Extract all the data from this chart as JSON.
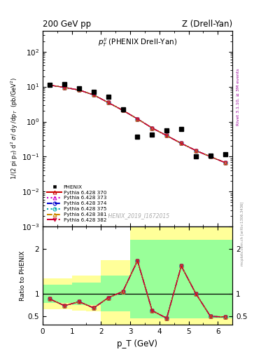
{
  "title_left": "200 GeV pp",
  "title_right": "Z (Drell-Yan)",
  "annotation": "$p_T^{ll}$ (PHENIX Drell-Yan)",
  "watermark": "PHENIX_2019_I1672015",
  "right_label": "Rivet 3.1.10, ≥ 3M events",
  "mcplots_label": "mcplots.cern.ch [arXiv:1306.3436]",
  "ylabel_main": "1/(2 pi p_T) d² σ/ dy /dp_T  (pb/GeV²)",
  "ylabel_ratio": "Ratio to PHENIX",
  "xlabel": "p_T (GeV)",
  "ylim_main": [
    0.001,
    400
  ],
  "xlim": [
    0,
    6.5
  ],
  "phenix_x": [
    0.25,
    0.75,
    1.25,
    1.75,
    2.25,
    2.75,
    3.25,
    3.75,
    4.25,
    4.75,
    5.25,
    5.75,
    6.25
  ],
  "phenix_y": [
    11.5,
    11.8,
    9.0,
    7.2,
    5.2,
    2.2,
    0.38,
    0.42,
    0.55,
    0.62,
    0.1,
    0.105,
    0.115
  ],
  "pythia_x": [
    0.25,
    0.75,
    1.25,
    1.75,
    2.25,
    2.75,
    3.25,
    3.75,
    4.25,
    4.75,
    5.25,
    5.75,
    6.25
  ],
  "pythia_y": [
    11.0,
    9.5,
    8.0,
    5.8,
    3.5,
    2.1,
    1.2,
    0.66,
    0.4,
    0.24,
    0.15,
    0.1,
    0.068
  ],
  "ratio_x": [
    0.25,
    0.75,
    1.25,
    1.75,
    2.25,
    2.75,
    3.25,
    3.75,
    4.25,
    4.75,
    5.25,
    5.75,
    6.25
  ],
  "ratio_y": [
    0.88,
    0.73,
    0.82,
    0.68,
    0.91,
    1.05,
    1.74,
    0.62,
    0.45,
    1.62,
    1.0,
    0.49,
    0.48
  ],
  "phenix_color": "#000000",
  "pythia_color_370": "#cc0000",
  "pythia_color_373": "#cc00cc",
  "pythia_color_374": "#0000cc",
  "pythia_color_375": "#00aaaa",
  "pythia_color_381": "#cc8800",
  "pythia_color_382": "#cc0033",
  "bg_yellow_color": "#ffff99",
  "bg_green_color": "#99ff99",
  "yellow_top": [
    1.35,
    1.35,
    1.4,
    1.4,
    1.75,
    1.75,
    2.5,
    2.5,
    2.5,
    2.5,
    2.5,
    2.5,
    2.5
  ],
  "yellow_bottom": [
    0.65,
    0.65,
    0.6,
    0.6,
    0.3,
    0.3,
    0.3,
    0.3,
    0.3,
    0.3,
    0.3,
    0.3,
    0.3
  ],
  "green_top": [
    1.2,
    1.2,
    1.25,
    1.25,
    1.4,
    1.4,
    2.2,
    2.2,
    2.2,
    2.2,
    2.2,
    2.2,
    2.2
  ],
  "green_bottom": [
    0.8,
    0.8,
    0.75,
    0.75,
    0.6,
    0.6,
    0.45,
    0.45,
    0.45,
    0.45,
    0.45,
    0.45,
    0.45
  ],
  "bin_edges_x": [
    0.0,
    0.5,
    1.0,
    1.5,
    2.0,
    2.5,
    3.0,
    3.5,
    4.0,
    4.5,
    5.0,
    5.5,
    6.0,
    6.5
  ]
}
